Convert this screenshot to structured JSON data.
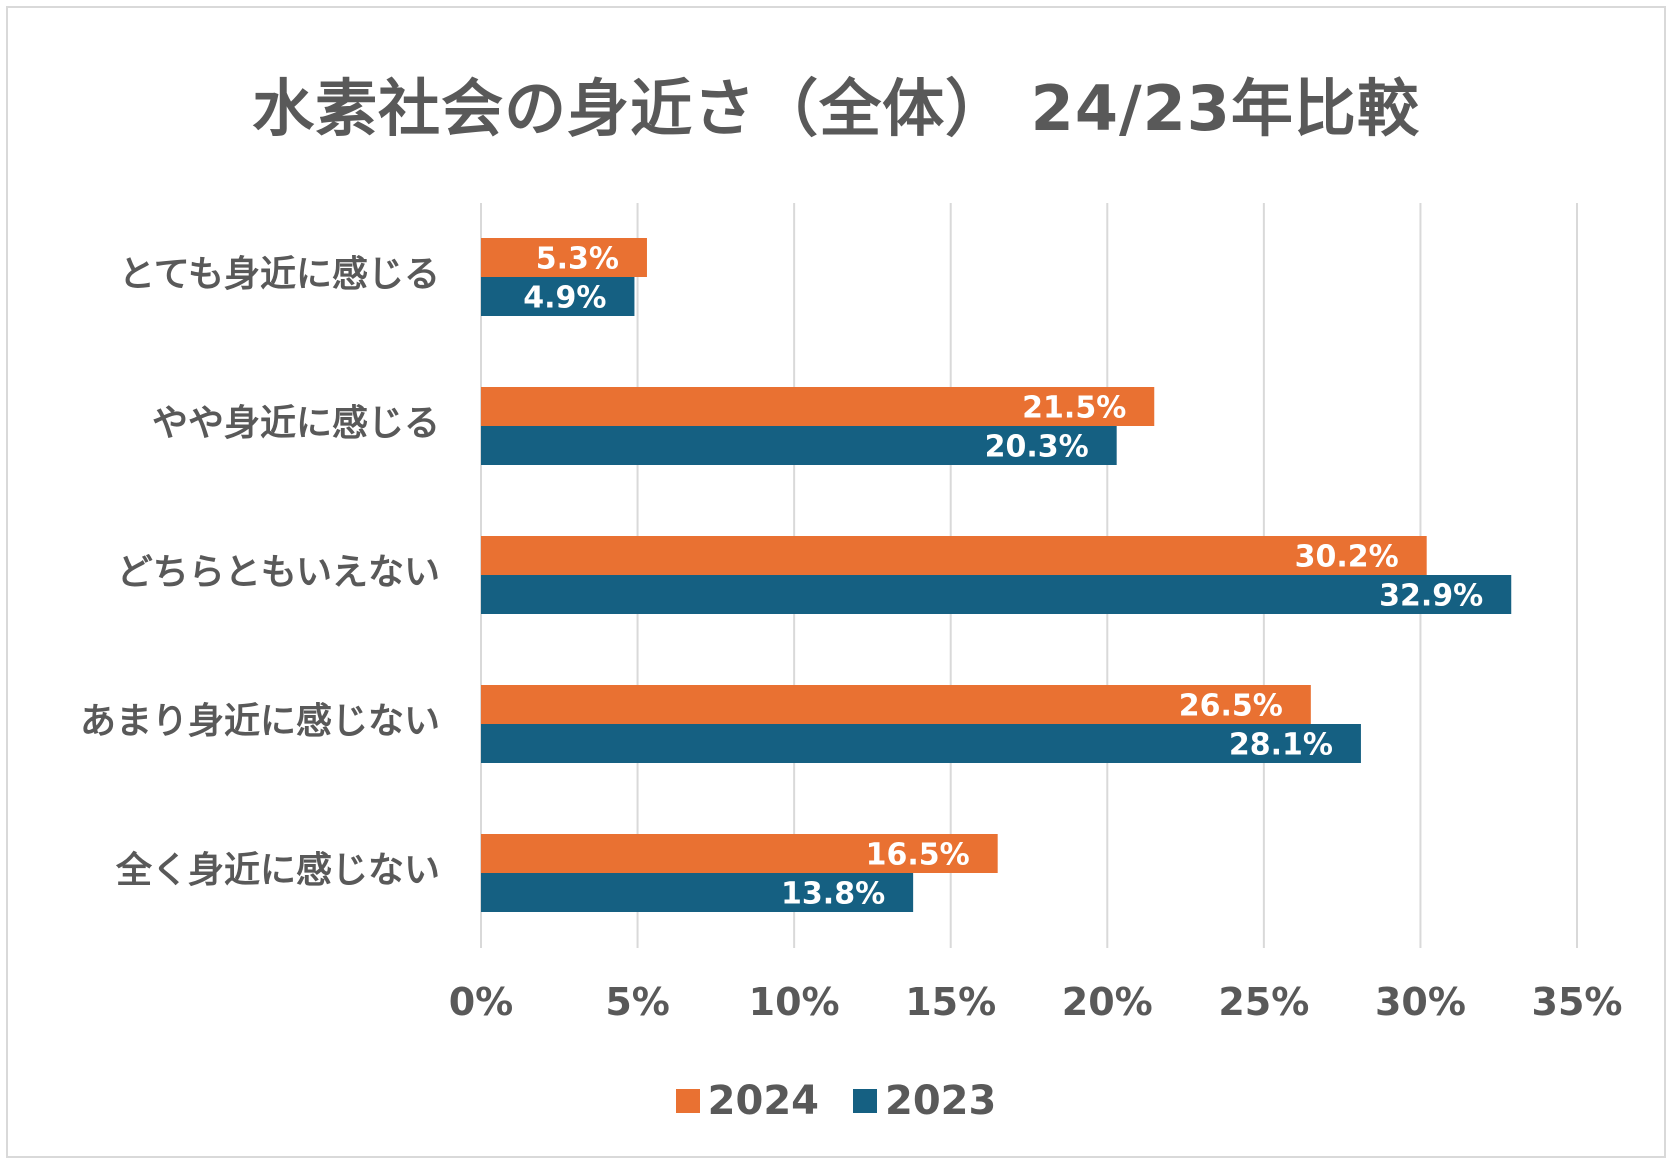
{
  "chart_data": {
    "type": "bar",
    "orientation": "horizontal",
    "title": "水素社会の身近さ（全体） 24/23年比較",
    "categories": [
      "とても身近に感じる",
      "やや身近に感じる",
      "どちらともいえない",
      "あまり身近に感じない",
      "全く身近に感じない"
    ],
    "series": [
      {
        "name": "2024",
        "color": "#E97132",
        "values": [
          5.3,
          21.5,
          30.2,
          26.5,
          16.5
        ]
      },
      {
        "name": "2023",
        "color": "#156082",
        "values": [
          4.9,
          20.3,
          32.9,
          28.1,
          13.8
        ]
      }
    ],
    "value_labels": {
      "2024": [
        "5.3%",
        "21.5%",
        "30.2%",
        "26.5%",
        "16.5%"
      ],
      "2023": [
        "4.9%",
        "20.3%",
        "32.9%",
        "28.1%",
        "13.8%"
      ]
    },
    "xlim": [
      0,
      35
    ],
    "xticks": [
      0,
      5,
      10,
      15,
      20,
      25,
      30,
      35
    ],
    "xtick_labels": [
      "0%",
      "5%",
      "10%",
      "15%",
      "20%",
      "25%",
      "30%",
      "35%"
    ],
    "grid": true,
    "legend_position": "bottom-center"
  }
}
